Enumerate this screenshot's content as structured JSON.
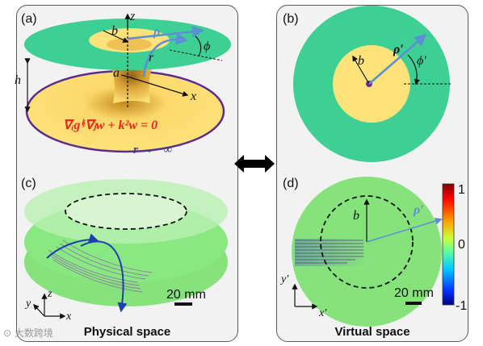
{
  "panels": {
    "a": {
      "label": "(a)",
      "axis_z": "z",
      "axis_x": "x",
      "b": "b",
      "a": "a",
      "h": "h",
      "r": "r",
      "rho": "ρ",
      "phi": "ϕ",
      "equation": "∇ᵢgⁱʲ∇ⱼw + k²w = 0",
      "limit": "r → −∞"
    },
    "b": {
      "label": "(b)",
      "b": "b",
      "rho": "ρ′",
      "phi": "ϕ′"
    },
    "c": {
      "label": "(c)",
      "axis_x": "x",
      "axis_y": "y",
      "axis_z": "z",
      "scale": "20 mm"
    },
    "d": {
      "label": "(d)",
      "b": "b",
      "rho": "ρ′",
      "axis_x": "x′",
      "axis_y": "y′",
      "scale": "20 mm",
      "colorbar_ticks": [
        "1",
        "0",
        "-1"
      ]
    }
  },
  "captions": {
    "left": "Physical space",
    "right": "Virtual space"
  },
  "watermark": "⊙ 大数跨境",
  "colors": {
    "green": "#3ecf95",
    "yellow": "#fde37a",
    "purple": "#5b2d8e",
    "red": "#e8241c",
    "blue_arrow": "#5b8fd6",
    "panel_bg": "#f2f2f2"
  }
}
